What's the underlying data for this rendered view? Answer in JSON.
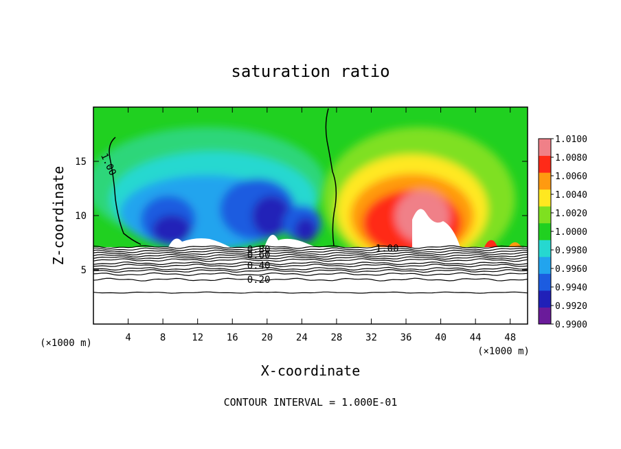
{
  "chart_data": {
    "type": "heatmap",
    "title": "saturation ratio",
    "xlabel": "X-coordinate",
    "ylabel": "Z-coordinate",
    "x_unit_label": "(×1000 m)",
    "x_unit_label_right": "(×1000 m)",
    "footer": "CONTOUR INTERVAL = 1.000E-01",
    "xlim": [
      0,
      50
    ],
    "ylim": [
      0,
      20
    ],
    "x_ticks": [
      4,
      8,
      12,
      16,
      20,
      24,
      28,
      32,
      36,
      40,
      44,
      48
    ],
    "y_ticks": [
      5,
      10,
      15
    ],
    "colorbar": {
      "levels": [
        0.99,
        0.992,
        0.994,
        0.996,
        0.998,
        1.0,
        1.002,
        1.004,
        1.006,
        1.008,
        1.01
      ],
      "labels": [
        "1.0100",
        "1.0080",
        "1.0060",
        "1.0040",
        "1.0020",
        "1.0000",
        "0.9980",
        "0.9960",
        "0.9940",
        "0.9920",
        "0.9900"
      ],
      "colors": [
        "#6a1b9a",
        "#2020b8",
        "#1c5ce0",
        "#22a4ee",
        "#26d8d0",
        "#20d020",
        "#7fe020",
        "#ffe820",
        "#ff9a10",
        "#ff2a18",
        "#f08088"
      ]
    },
    "contour_labels": [
      {
        "text": "1.00",
        "x": 1.2,
        "y": 15.7,
        "angle": 65
      },
      {
        "text": "1.00",
        "x": 32.5,
        "y": 7.0,
        "angle": 0
      },
      {
        "text": "0.80",
        "x": 17.7,
        "y": 6.9,
        "angle": 0
      },
      {
        "text": "0.60",
        "x": 17.7,
        "y": 6.4,
        "angle": 0
      },
      {
        "text": "0.40",
        "x": 17.7,
        "y": 5.4,
        "angle": 0
      },
      {
        "text": "0.20",
        "x": 17.7,
        "y": 4.1,
        "angle": 0
      }
    ],
    "contour_levels": [
      0.2,
      0.4,
      0.6,
      0.8,
      1.0
    ],
    "boundary_height": 7.1,
    "subsaturated_region_x": [
      5,
      28
    ],
    "supersaturated_region_x": [
      28,
      48
    ]
  }
}
